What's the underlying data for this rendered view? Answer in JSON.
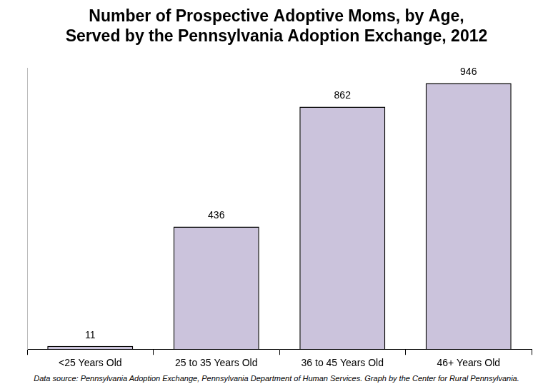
{
  "chart_data": {
    "type": "bar",
    "title": [
      "Number of Prospective Adoptive Moms, by Age,",
      "Served by the Pennsylvania Adoption Exchange, 2012"
    ],
    "categories": [
      "<25 Years Old",
      "25 to 35 Years Old",
      "36 to 45 Years Old",
      "46+ Years Old"
    ],
    "values": [
      11,
      436,
      862,
      946
    ],
    "color": "#cbc3dc",
    "ylim": [
      0,
      1000
    ],
    "grid": false,
    "data_labels": true,
    "tick_labels": "x",
    "source": "Data source: Pennsylvania Adoption Exchange, Pennsylvania Department of Human Services. Graph by the Center for Rural Pennsylvania."
  }
}
